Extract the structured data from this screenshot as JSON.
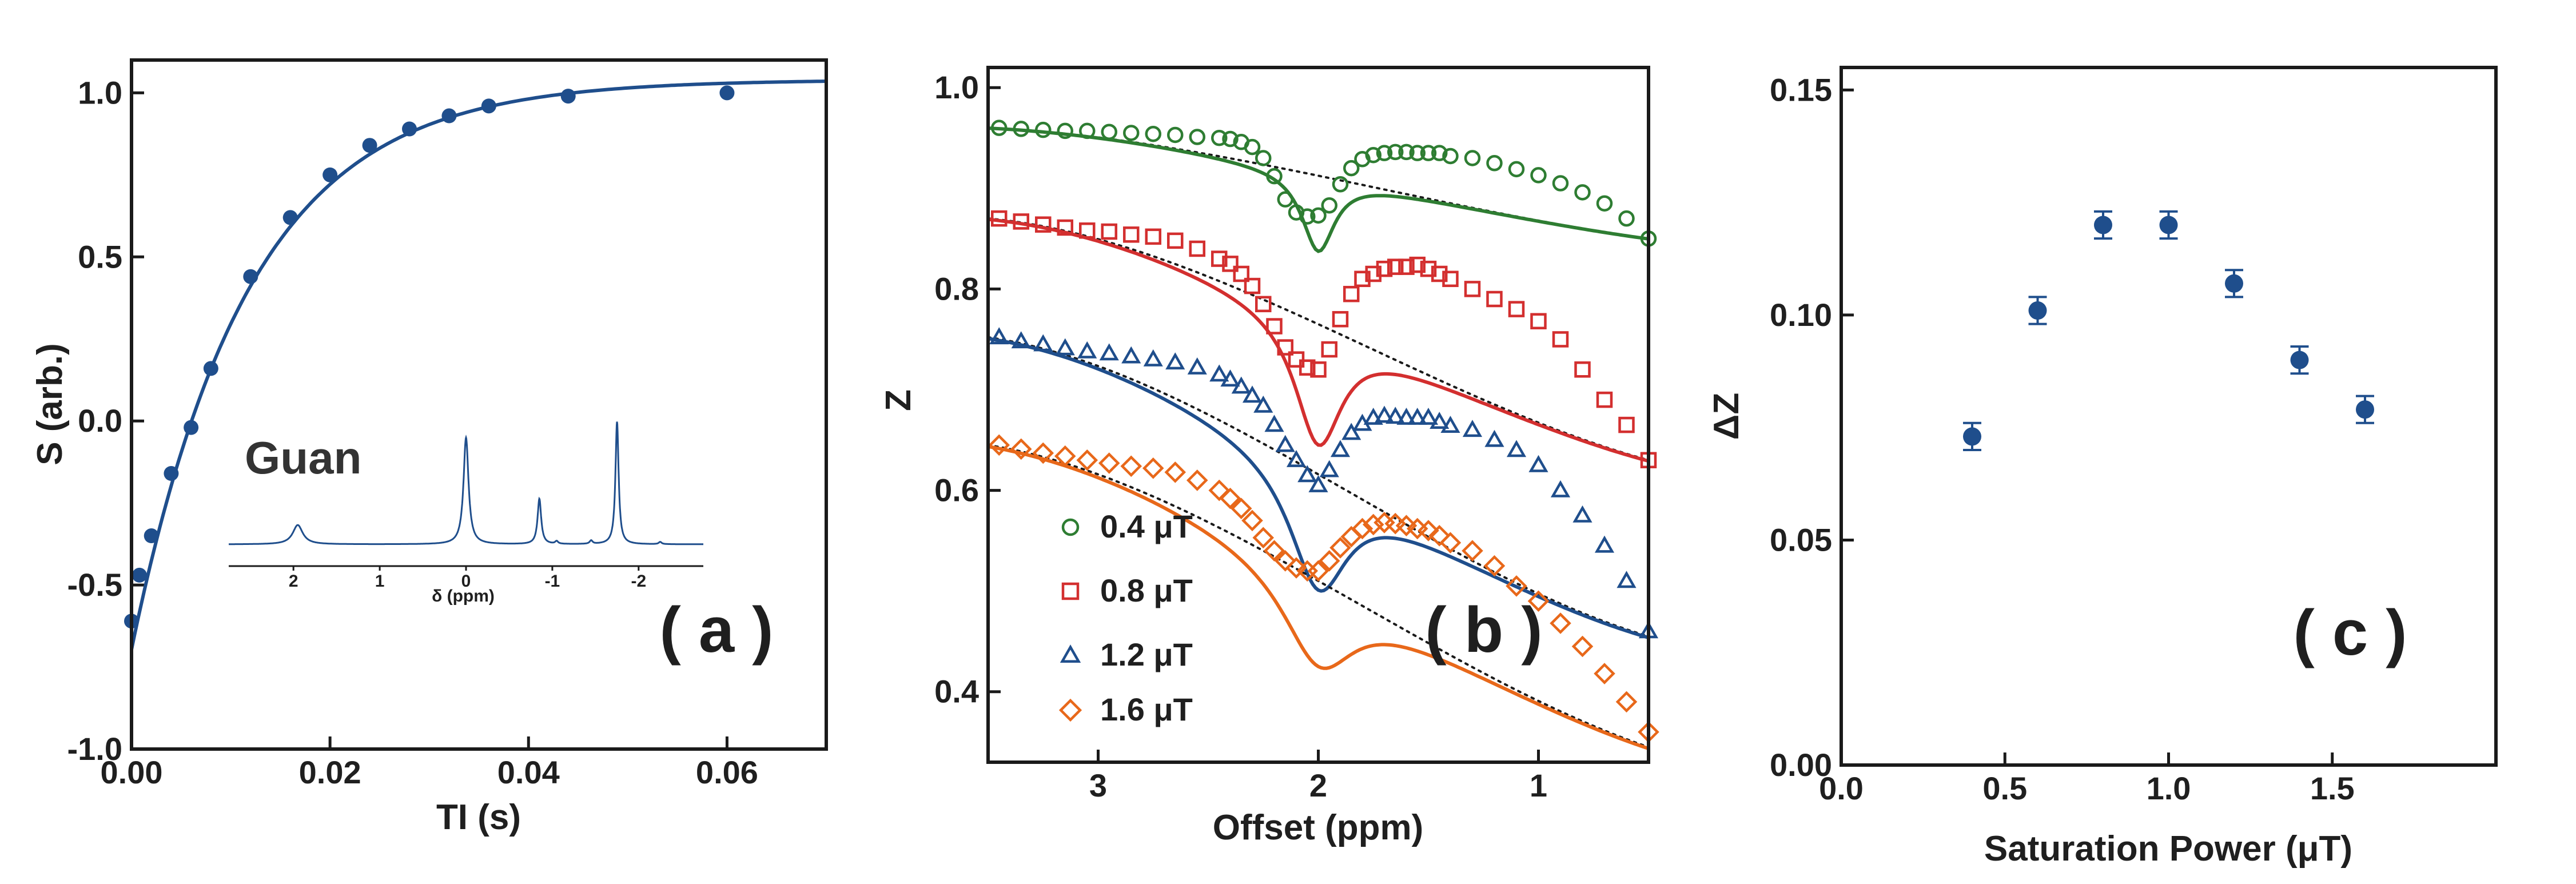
{
  "colors": {
    "navy": "#1f4e8c",
    "dark": "#1a1a1a",
    "green": "#2e7d32",
    "red": "#d32f2f",
    "blue": "#1f4e8c",
    "orange": "#e8681a"
  },
  "chart_data": [
    {
      "panel": "a",
      "type": "scatter",
      "panel_label": "( a )",
      "xlabel": "TI (s)",
      "ylabel": "S (arb.)",
      "xlim": [
        0,
        0.07
      ],
      "ylim": [
        -1,
        1.1
      ],
      "xticks": [
        {
          "v": 0.0,
          "label": "0.00"
        },
        {
          "v": 0.02,
          "label": "0.02"
        },
        {
          "v": 0.04,
          "label": "0.04"
        },
        {
          "v": 0.06,
          "label": "0.06"
        }
      ],
      "yticks": [
        {
          "v": 1.0,
          "label": "1.0"
        },
        {
          "v": 0.5,
          "label": "0.5"
        },
        {
          "v": 0.0,
          "label": "0.0"
        },
        {
          "v": -0.5,
          "label": "-0.5"
        },
        {
          "v": -1.0,
          "label": "-1.0"
        }
      ],
      "x": [
        0.0,
        0.0008,
        0.002,
        0.004,
        0.006,
        0.008,
        0.012,
        0.016,
        0.02,
        0.024,
        0.028,
        0.032,
        0.036,
        0.044,
        0.06
      ],
      "y": [
        -0.61,
        -0.47,
        -0.35,
        -0.16,
        -0.02,
        0.16,
        0.44,
        0.62,
        0.75,
        0.84,
        0.89,
        0.93,
        0.96,
        0.99,
        1.0
      ],
      "fit": {
        "amplitude": 1.04,
        "offset": 1.67,
        "T1": 0.0118
      },
      "inset": {
        "title": "Guan",
        "xlabel": "δ (ppm)",
        "xlim": [
          2.75,
          -2.75
        ],
        "xticks": [
          {
            "v": 2,
            "label": "2"
          },
          {
            "v": 1,
            "label": "1"
          },
          {
            "v": 0,
            "label": "0"
          },
          {
            "v": -1,
            "label": "-1"
          },
          {
            "v": -2,
            "label": "-2"
          }
        ],
        "peaks": [
          {
            "ppm": 1.95,
            "height": 0.085,
            "width": 0.07
          },
          {
            "ppm": 0.0,
            "height": 0.47,
            "width": 0.035
          },
          {
            "ppm": -0.85,
            "height": 0.2,
            "width": 0.025
          },
          {
            "ppm": -1.05,
            "height": 0.012,
            "width": 0.02
          },
          {
            "ppm": -1.45,
            "height": 0.015,
            "width": 0.02
          },
          {
            "ppm": -1.75,
            "height": 0.54,
            "width": 0.022
          },
          {
            "ppm": -2.25,
            "height": 0.01,
            "width": 0.02
          }
        ]
      }
    },
    {
      "panel": "b",
      "type": "scatter",
      "panel_label": "( b )",
      "xlabel": "Offset (ppm)",
      "ylabel": "Z",
      "xlim": [
        3.5,
        0.5
      ],
      "ylim": [
        0.33,
        1.02
      ],
      "xticks": [
        {
          "v": 3,
          "label": "3"
        },
        {
          "v": 2,
          "label": "2"
        },
        {
          "v": 1,
          "label": "1"
        }
      ],
      "yticks": [
        {
          "v": 1.0,
          "label": "1.0"
        },
        {
          "v": 0.8,
          "label": "0.8"
        },
        {
          "v": 0.6,
          "label": "0.6"
        },
        {
          "v": 0.4,
          "label": "0.4"
        }
      ],
      "x_offsets": [
        3.45,
        3.35,
        3.25,
        3.15,
        3.05,
        2.95,
        2.85,
        2.75,
        2.65,
        2.55,
        2.45,
        2.4,
        2.35,
        2.3,
        2.25,
        2.2,
        2.15,
        2.1,
        2.05,
        2.0,
        1.95,
        1.9,
        1.85,
        1.8,
        1.75,
        1.7,
        1.65,
        1.6,
        1.55,
        1.5,
        1.45,
        1.4,
        1.3,
        1.2,
        1.1,
        1.0,
        0.9,
        0.8,
        0.7,
        0.6,
        0.5
      ],
      "series": [
        {
          "name": "0.4 μT",
          "marker": "circle",
          "colorKey": "green",
          "values": [
            0.96,
            0.959,
            0.958,
            0.957,
            0.957,
            0.956,
            0.955,
            0.954,
            0.953,
            0.951,
            0.95,
            0.949,
            0.946,
            0.941,
            0.93,
            0.912,
            0.889,
            0.876,
            0.872,
            0.873,
            0.883,
            0.904,
            0.92,
            0.929,
            0.933,
            0.935,
            0.936,
            0.936,
            0.935,
            0.935,
            0.935,
            0.932,
            0.93,
            0.925,
            0.919,
            0.913,
            0.905,
            0.896,
            0.885,
            0.87,
            0.85
          ],
          "fit": {
            "base": [
              3.5,
              0.96,
              0.95,
              0.88,
              0.85
            ],
            "dip_depth": 0.075,
            "dip_width": 0.09
          }
        },
        {
          "name": "0.8 μT",
          "marker": "square",
          "colorKey": "red",
          "values": [
            0.87,
            0.867,
            0.864,
            0.861,
            0.858,
            0.857,
            0.854,
            0.852,
            0.848,
            0.84,
            0.83,
            0.825,
            0.815,
            0.803,
            0.785,
            0.763,
            0.742,
            0.73,
            0.722,
            0.72,
            0.74,
            0.77,
            0.795,
            0.81,
            0.815,
            0.82,
            0.822,
            0.822,
            0.824,
            0.82,
            0.815,
            0.81,
            0.8,
            0.79,
            0.78,
            0.768,
            0.75,
            0.72,
            0.69,
            0.665,
            0.63
          ],
          "fit": {
            "base": [
              3.5,
              0.87,
              0.85,
              0.69,
              0.63
            ],
            "dip_depth": 0.12,
            "dip_width": 0.13
          }
        },
        {
          "name": "1.2 μT",
          "marker": "triangle",
          "colorKey": "blue",
          "values": [
            0.752,
            0.748,
            0.745,
            0.741,
            0.738,
            0.736,
            0.733,
            0.73,
            0.727,
            0.722,
            0.715,
            0.71,
            0.703,
            0.694,
            0.684,
            0.665,
            0.645,
            0.63,
            0.615,
            0.605,
            0.62,
            0.64,
            0.657,
            0.666,
            0.672,
            0.674,
            0.673,
            0.672,
            0.672,
            0.672,
            0.668,
            0.664,
            0.66,
            0.65,
            0.64,
            0.625,
            0.6,
            0.575,
            0.545,
            0.51,
            0.46
          ],
          "fit": {
            "base": [
              3.5,
              0.752,
              0.72,
              0.52,
              0.455
            ],
            "dip_depth": 0.115,
            "dip_width": 0.16
          }
        },
        {
          "name": "1.6 μT",
          "marker": "diamond",
          "colorKey": "orange",
          "values": [
            0.645,
            0.641,
            0.637,
            0.634,
            0.63,
            0.627,
            0.624,
            0.622,
            0.618,
            0.61,
            0.6,
            0.592,
            0.582,
            0.57,
            0.553,
            0.54,
            0.53,
            0.523,
            0.52,
            0.52,
            0.53,
            0.543,
            0.554,
            0.562,
            0.566,
            0.568,
            0.567,
            0.565,
            0.562,
            0.56,
            0.555,
            0.548,
            0.54,
            0.525,
            0.505,
            0.49,
            0.468,
            0.445,
            0.418,
            0.39,
            0.36
          ],
          "fit": {
            "base": [
              3.5,
              0.645,
              0.61,
              0.42,
              0.345
            ],
            "dip_depth": 0.085,
            "dip_width": 0.2
          }
        }
      ],
      "reference_line": "dotted"
    },
    {
      "panel": "c",
      "type": "scatter",
      "panel_label": "( c )",
      "xlabel": "Saturation Power (μT)",
      "ylabel": "ΔZ",
      "xlim": [
        0,
        2.0
      ],
      "ylim": [
        0,
        0.155
      ],
      "xticks": [
        {
          "v": 0.0,
          "label": "0.0"
        },
        {
          "v": 0.5,
          "label": "0.5"
        },
        {
          "v": 1.0,
          "label": "1.0"
        },
        {
          "v": 1.5,
          "label": "1.5"
        }
      ],
      "yticks": [
        {
          "v": 0.15,
          "label": "0.15"
        },
        {
          "v": 0.1,
          "label": "0.10"
        },
        {
          "v": 0.05,
          "label": "0.05"
        },
        {
          "v": 0.0,
          "label": "0.00"
        }
      ],
      "x": [
        0.4,
        0.6,
        0.8,
        1.0,
        1.2,
        1.4,
        1.6
      ],
      "y": [
        0.073,
        0.101,
        0.12,
        0.12,
        0.107,
        0.09,
        0.079
      ],
      "yerr": [
        0.003,
        0.003,
        0.003,
        0.003,
        0.003,
        0.003,
        0.003
      ]
    }
  ]
}
